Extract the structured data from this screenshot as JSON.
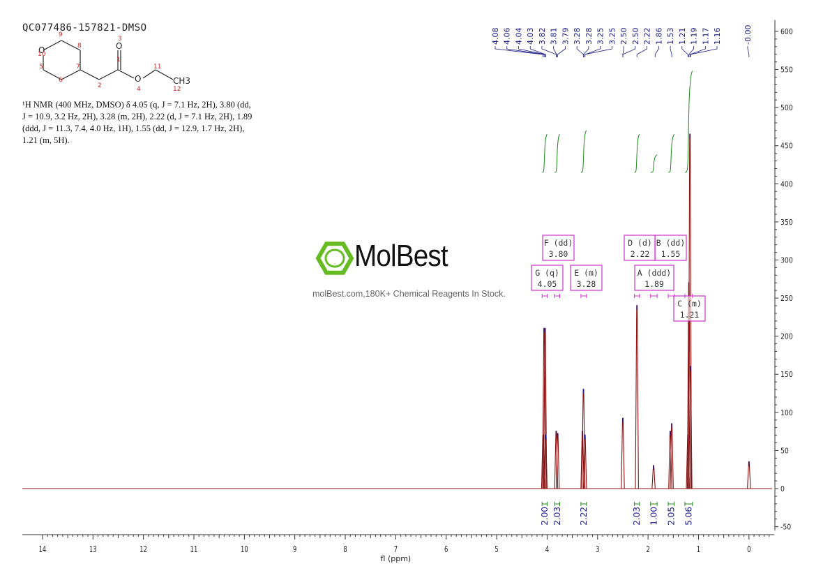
{
  "sample_id": "QC077486-157821-DMSO",
  "nmr_description": "¹H NMR (400 MHz, DMSO) δ 4.05 (q, J = 7.1 Hz, 2H), 3.80 (dd, J = 10.9, 3.2 Hz, 2H), 3.28 (m, 2H), 2.22 (d, J = 7.1 Hz, 2H), 1.89 (ddd, J = 11.3, 7.4, 4.0 Hz, 1H), 1.55 (dd, J = 12.9, 1.7 Hz, 2H), 1.21 (m, 5H).",
  "structure": {
    "atom_labels": [
      "O",
      "O",
      "O",
      "CH3"
    ],
    "atom_numbers": [
      "1",
      "2",
      "3",
      "4",
      "5",
      "6",
      "7",
      "8",
      "9",
      "10",
      "11",
      "12"
    ]
  },
  "watermark": {
    "brand": "MolBest",
    "tagline": "molBest.com,180K+ Chemical Reagents In Stock."
  },
  "colors": {
    "spectrum": "#8b1010",
    "peak_labels": "#1a1a8c",
    "integral_curve": "#1a8a1a",
    "integral_labels": "#1a1a8c",
    "multiplet_box": "#cc33cc",
    "axis": "#333333",
    "atom_numbers": "#cc2222",
    "watermark_logo": "#66bb22"
  },
  "chart_data": {
    "type": "line",
    "xlabel": "fl (ppm)",
    "x_ticks": [
      14,
      13,
      12,
      11,
      10,
      9,
      8,
      7,
      6,
      5,
      4,
      3,
      2,
      1,
      0
    ],
    "xlim": [
      14.4,
      -0.5
    ],
    "y_ticks": [
      600,
      550,
      500,
      450,
      400,
      350,
      300,
      250,
      200,
      150,
      100,
      50,
      0,
      -50
    ],
    "ylim": [
      -55,
      615
    ],
    "peak_labels": [
      "4.08",
      "4.06",
      "4.04",
      "4.03",
      "3.82",
      "3.81",
      "3.79",
      "3.28",
      "3.28",
      "3.25",
      "3.25",
      "2.50",
      "2.50",
      "2.22",
      "1.86",
      "1.53",
      "1.21",
      "1.19",
      "1.17",
      "1.16",
      "-0.00"
    ],
    "peaks": [
      {
        "ppm": 4.08,
        "height": 70
      },
      {
        "ppm": 4.06,
        "height": 210
      },
      {
        "ppm": 4.04,
        "height": 210
      },
      {
        "ppm": 4.03,
        "height": 70
      },
      {
        "ppm": 3.82,
        "height": 75
      },
      {
        "ppm": 3.79,
        "height": 72
      },
      {
        "ppm": 3.3,
        "height": 75
      },
      {
        "ppm": 3.28,
        "height": 130
      },
      {
        "ppm": 3.25,
        "height": 70
      },
      {
        "ppm": 2.5,
        "height": 92
      },
      {
        "ppm": 2.22,
        "height": 240
      },
      {
        "ppm": 1.89,
        "height": 30
      },
      {
        "ppm": 1.56,
        "height": 75
      },
      {
        "ppm": 1.53,
        "height": 85
      },
      {
        "ppm": 1.21,
        "height": 70
      },
      {
        "ppm": 1.19,
        "height": 270
      },
      {
        "ppm": 1.17,
        "height": 465
      },
      {
        "ppm": 1.16,
        "height": 160
      },
      {
        "ppm": 0.0,
        "height": 35
      }
    ],
    "multiplets": [
      {
        "letter": "G",
        "mult": "(q)",
        "shift": "4.05",
        "range": [
          4.1,
          4.0
        ]
      },
      {
        "letter": "F",
        "mult": "(dd)",
        "shift": "3.80",
        "range": [
          3.85,
          3.75
        ]
      },
      {
        "letter": "E",
        "mult": "(m)",
        "shift": "3.28",
        "range": [
          3.33,
          3.22
        ]
      },
      {
        "letter": "D",
        "mult": "(d)",
        "shift": "2.22",
        "range": [
          2.27,
          2.17
        ]
      },
      {
        "letter": "A",
        "mult": "(ddd)",
        "shift": "1.89",
        "range": [
          1.95,
          1.82
        ]
      },
      {
        "letter": "B",
        "mult": "(dd)",
        "shift": "1.55",
        "range": [
          1.6,
          1.48
        ]
      },
      {
        "letter": "C",
        "mult": "(m)",
        "shift": "1.21",
        "range": [
          1.27,
          1.12
        ]
      }
    ],
    "integrals": [
      {
        "value": "2.00",
        "range": [
          4.1,
          4.0
        ],
        "curve": [
          415,
          465
        ]
      },
      {
        "value": "2.03",
        "range": [
          3.85,
          3.75
        ],
        "curve": [
          415,
          465
        ]
      },
      {
        "value": "2.22",
        "range": [
          3.33,
          3.22
        ],
        "curve": [
          415,
          470
        ]
      },
      {
        "value": "2.03",
        "range": [
          2.27,
          2.17
        ],
        "curve": [
          415,
          465
        ]
      },
      {
        "value": "1.00",
        "range": [
          1.95,
          1.82
        ],
        "curve": [
          415,
          438
        ]
      },
      {
        "value": "2.05",
        "range": [
          1.6,
          1.48
        ],
        "curve": [
          415,
          465
        ]
      },
      {
        "value": "5.06",
        "range": [
          1.27,
          1.12
        ],
        "curve": [
          415,
          548
        ]
      }
    ]
  }
}
